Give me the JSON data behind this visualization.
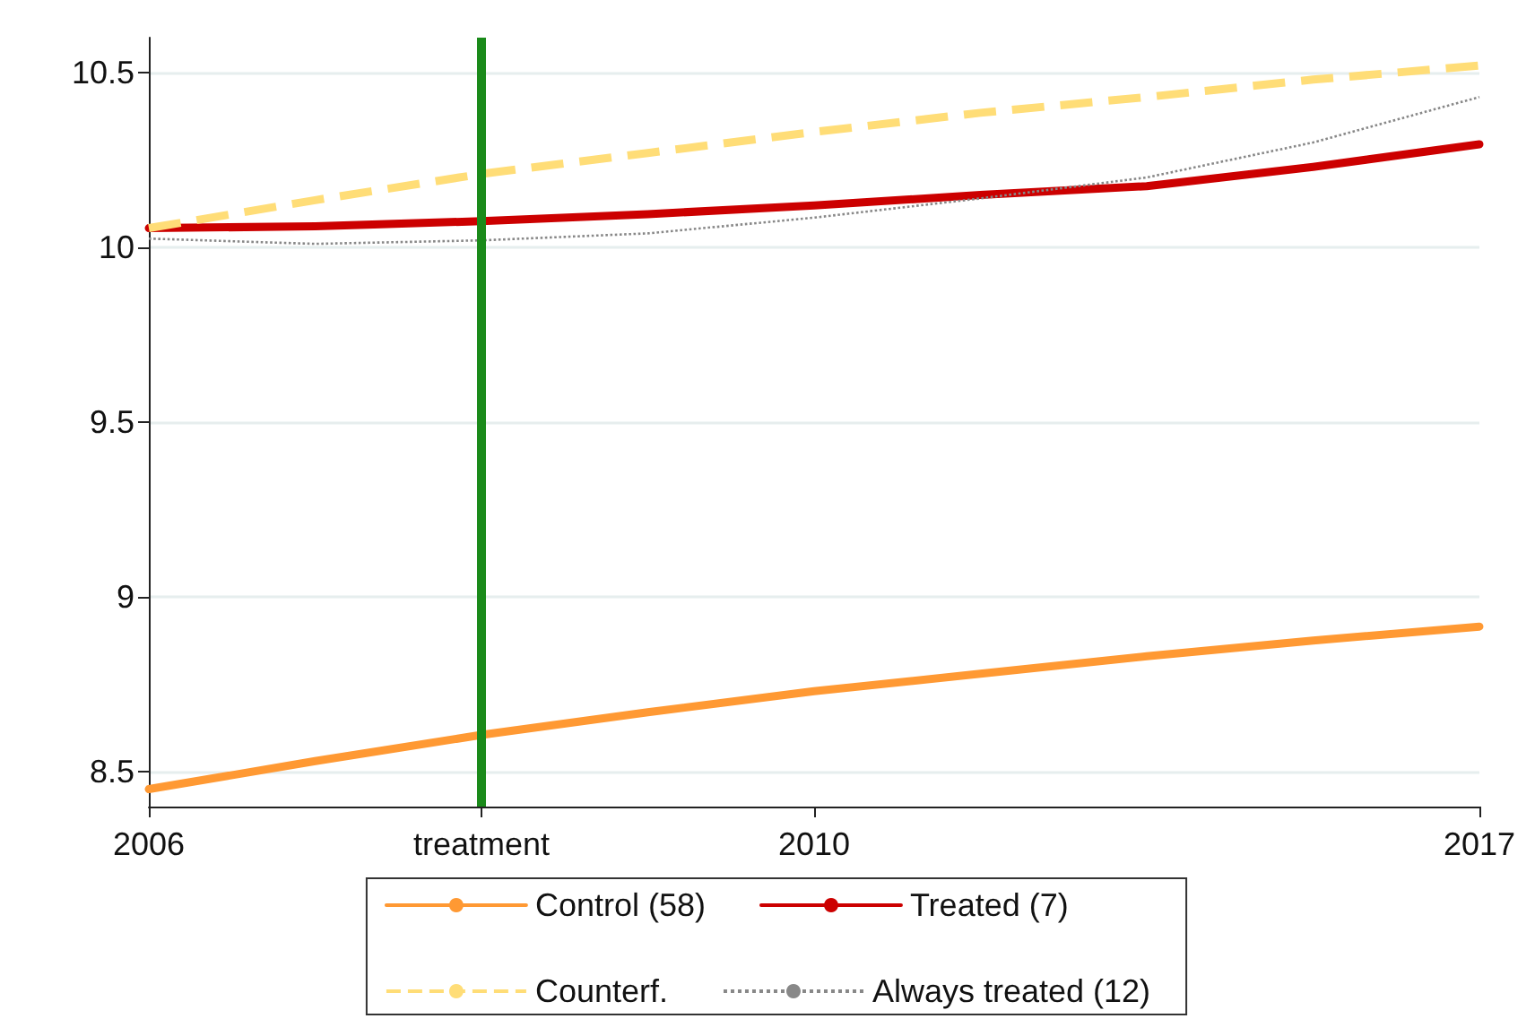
{
  "chart_data": {
    "type": "line",
    "categories": [
      "2006",
      null,
      "treatment",
      null,
      "2010",
      null,
      null,
      null,
      "2017"
    ],
    "ylim": [
      8.4,
      10.6
    ],
    "yticks": [
      8.5,
      9,
      9.5,
      10,
      10.5
    ],
    "grid": "y",
    "legend": "bottom",
    "marker": "none",
    "series": [
      {
        "name": "Control (58)",
        "color": "#ff9933",
        "line_style": "solid",
        "values": [
          8.45,
          8.53,
          8.605,
          8.67,
          8.73,
          8.78,
          8.83,
          8.875,
          8.915
        ]
      },
      {
        "name": "Treated (7)",
        "color": "#cc0000",
        "line_style": "solid",
        "values": [
          10.055,
          10.06,
          10.075,
          10.095,
          10.12,
          10.15,
          10.175,
          10.23,
          10.295
        ]
      },
      {
        "name": "Counterf.",
        "color": "#ffdd77",
        "line_style": "dashed",
        "values": [
          10.055,
          10.135,
          10.21,
          10.27,
          10.33,
          10.385,
          10.43,
          10.48,
          10.52
        ]
      },
      {
        "name": "Always treated (12)",
        "color": "#888888",
        "line_style": "dotted",
        "values": [
          10.025,
          10.01,
          10.02,
          10.04,
          10.085,
          10.14,
          10.2,
          10.3,
          10.43
        ]
      }
    ],
    "ref_lines": [
      {
        "axis": "x",
        "value": "treatment",
        "label": null,
        "color": "#1a8a1a"
      }
    ]
  }
}
